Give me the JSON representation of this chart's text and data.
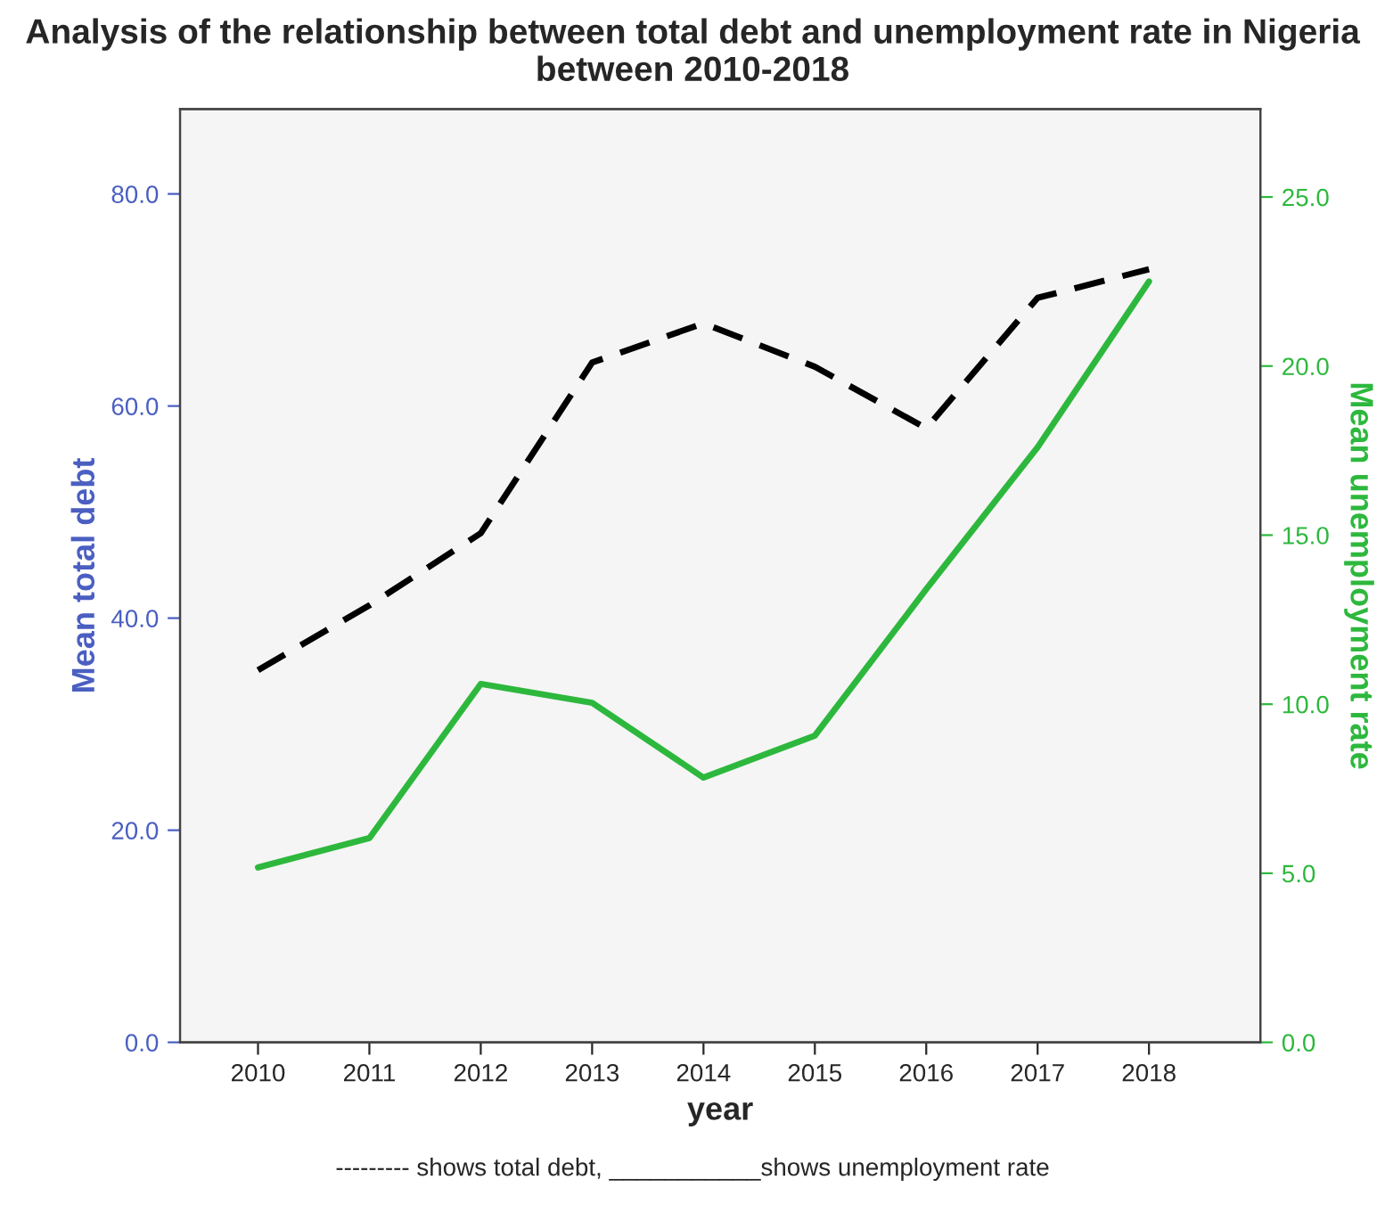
{
  "chart_data": {
    "type": "line",
    "title": "Analysis of the relationship between total debt and unemployment rate in Nigeria between 2010-2018",
    "xlabel": "year",
    "ylabel": "Mean total debt",
    "y2label": "Mean unemployment rate",
    "categories": [
      "2010",
      "2011",
      "2012",
      "2013",
      "2014",
      "2015",
      "2016",
      "2017",
      "2018"
    ],
    "series": [
      {
        "color": "#000000",
        "line_style": "dashed",
        "axis": "y",
        "values": [
          35.1,
          41.2,
          48.0,
          64.1,
          67.8,
          63.7,
          57.9,
          70.2,
          72.9
        ]
      },
      {
        "color": "#2db83d",
        "line_style": "solid",
        "axis": "y2",
        "values": [
          5.17,
          6.04,
          10.6,
          10.04,
          7.83,
          9.07,
          13.4,
          17.6,
          22.5
        ]
      }
    ],
    "ylim": [
      0,
      88
    ],
    "yticks": [
      {
        "value": 0,
        "label": "0.0"
      },
      {
        "value": 20,
        "label": "20.0"
      },
      {
        "value": 40,
        "label": "40.0"
      },
      {
        "value": 60,
        "label": "60.0"
      },
      {
        "value": 80,
        "label": "80.0"
      }
    ],
    "y2lim": [
      0,
      27.6
    ],
    "y2ticks": [
      {
        "value": 0,
        "label": "0.0"
      },
      {
        "value": 5,
        "label": "5.0"
      },
      {
        "value": 10,
        "label": "10.0"
      },
      {
        "value": 15,
        "label": "15.0"
      },
      {
        "value": 20,
        "label": "20.0"
      },
      {
        "value": 25,
        "label": "25.0"
      }
    ],
    "grid": false,
    "legend": false,
    "annotations": [
      "--------- shows total debt, ___________shows unemployment rate"
    ]
  }
}
